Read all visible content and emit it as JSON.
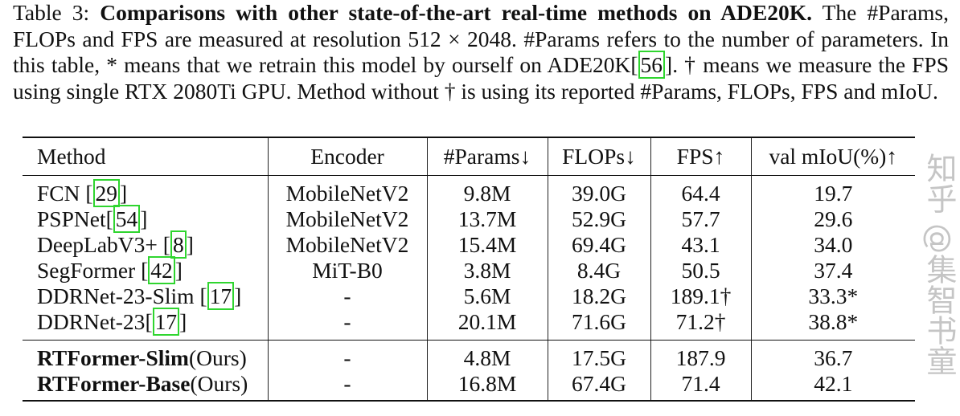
{
  "caption": {
    "label": "Table 3:",
    "title": "Comparisons with other state-of-the-art real-time methods on ADE20K.",
    "text_1": " The #Params, FLOPs and FPS are measured at resolution 512 × 2048. #Params refers to the number of parameters. In this table, * means that we retrain this model by ourself on ADE20K[",
    "cite": "56",
    "text_2": "]. † means we measure the FPS using single RTX 2080Ti GPU. Method without † is using its reported #Params, FLOPs, FPS and mIoU."
  },
  "table": {
    "headers": [
      "Method",
      "Encoder",
      "#Params↓",
      "FLOPs↓",
      "FPS↑",
      "val mIoU(%)↑"
    ],
    "rows": [
      {
        "method": "FCN ",
        "cite": "29",
        "encoder": "MobileNetV2",
        "params": "9.8M",
        "flops": "39.0G",
        "fps": "64.4",
        "miou": "19.7"
      },
      {
        "method": "PSPNet",
        "cite": "54",
        "encoder": "MobileNetV2",
        "params": "13.7M",
        "flops": "52.9G",
        "fps": "57.7",
        "miou": "29.6"
      },
      {
        "method": "DeepLabV3+ ",
        "cite": "8",
        "encoder": "MobileNetV2",
        "params": "15.4M",
        "flops": "69.4G",
        "fps": "43.1",
        "miou": "34.0"
      },
      {
        "method": "SegFormer ",
        "cite": "42",
        "encoder": "MiT-B0",
        "params": "3.8M",
        "flops": "8.4G",
        "fps": "50.5",
        "miou": "37.4"
      },
      {
        "method": "DDRNet-23-Slim ",
        "cite": "17",
        "encoder": "-",
        "params": "5.6M",
        "flops": "18.2G",
        "fps": "189.1†",
        "miou": "33.3*"
      },
      {
        "method": "DDRNet-23",
        "cite": "17",
        "encoder": "-",
        "params": "20.1M",
        "flops": "71.6G",
        "fps": "71.2†",
        "miou": "38.8*"
      }
    ],
    "ours": [
      {
        "method": "RTFormer-Slim",
        "suffix": "(Ours)",
        "encoder": "-",
        "params": "4.8M",
        "flops": "17.5G",
        "fps": "187.9",
        "miou": "36.7"
      },
      {
        "method": "RTFormer-Base",
        "suffix": "(Ours)",
        "encoder": "-",
        "params": "16.8M",
        "flops": "67.4G",
        "fps": "71.4",
        "miou": "42.1"
      }
    ]
  },
  "watermark": "知乎 @集智书童",
  "colors": {
    "cite_box": "#2fd52f",
    "text": "#111111"
  }
}
